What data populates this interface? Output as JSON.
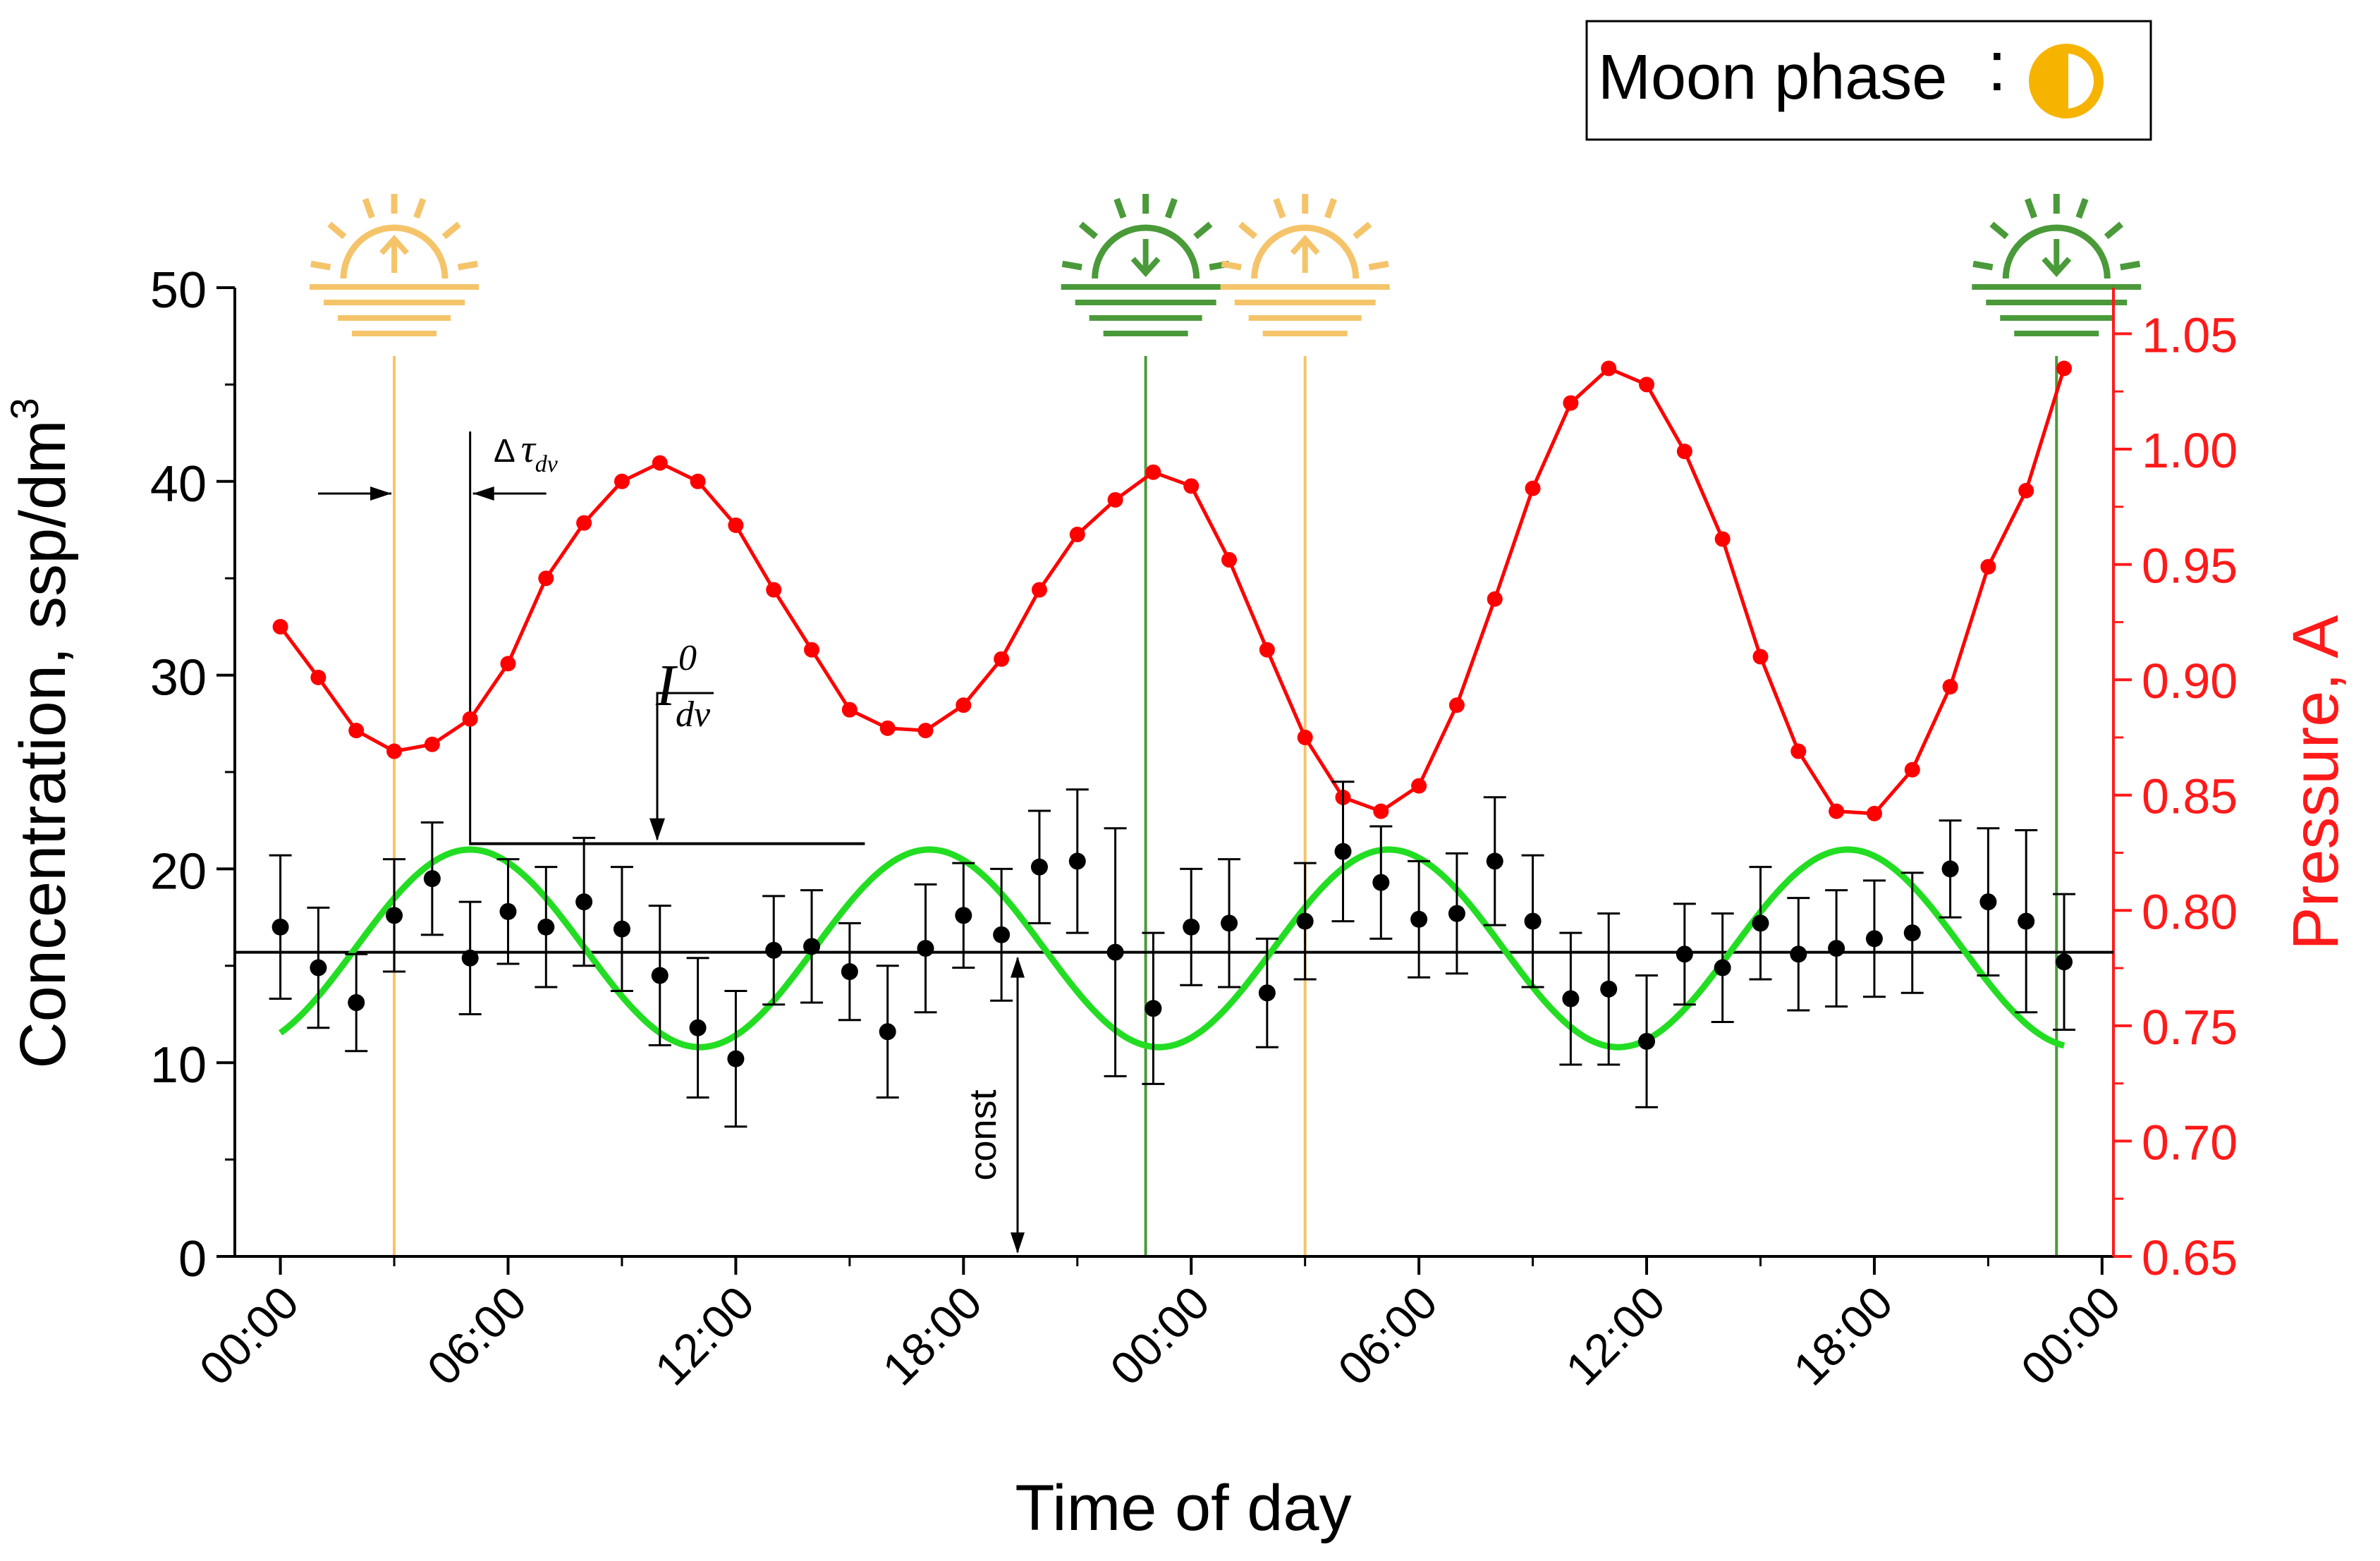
{
  "chart_data": {
    "type": "scatter",
    "xlabel": "Time of day",
    "ylabel_left": "Concentration, ssp/dm",
    "ylabel_left_sup": "3",
    "ylabel_right": "Pressure, A",
    "x_tick_labels": [
      "00:00",
      "06:00",
      "12:00",
      "18:00",
      "00:00",
      "06:00",
      "12:00",
      "18:00",
      "00:00"
    ],
    "x_tick_hours": [
      0,
      6,
      12,
      18,
      24,
      30,
      36,
      42,
      48
    ],
    "xlim_hours": [
      -1.2,
      48.3
    ],
    "ylim_left": [
      0,
      50
    ],
    "y_left_ticks": [
      0,
      10,
      20,
      30,
      40,
      50
    ],
    "ylim_right": [
      0.65,
      1.07
    ],
    "y_right_ticks": [
      "0.65",
      "0.70",
      "0.75",
      "0.80",
      "0.85",
      "0.90",
      "0.95",
      "1.00",
      "1.05"
    ],
    "legend_label": "Moon phase",
    "legend_colon": ":",
    "annotations": {
      "delta_tau": "Δ",
      "delta_tau_sym": "τ",
      "delta_tau_sub": "dv",
      "i_sym": "I",
      "i_sup": "0",
      "i_sub": "dv",
      "const": "const"
    },
    "series": [
      {
        "name": "Concentration",
        "color": "#000000",
        "hours": [
          0,
          1,
          2,
          3,
          4,
          5,
          6,
          7,
          8,
          9,
          10,
          11,
          12,
          13,
          14,
          15,
          16,
          17,
          18,
          19,
          20,
          21,
          22,
          23,
          24,
          25,
          26,
          27,
          28,
          29,
          30,
          31,
          32,
          33,
          34,
          35,
          36,
          37,
          38,
          39,
          40,
          41,
          42,
          43,
          44,
          45,
          46,
          47
        ],
        "values": [
          17.0,
          14.9,
          13.1,
          17.6,
          19.5,
          15.4,
          17.8,
          17.0,
          18.3,
          16.9,
          14.5,
          11.8,
          10.2,
          15.8,
          16.0,
          14.7,
          11.6,
          15.9,
          17.6,
          16.6,
          20.1,
          20.4,
          15.7,
          12.8,
          17.0,
          17.2,
          13.6,
          17.3,
          20.9,
          19.3,
          17.4,
          17.7,
          20.4,
          17.3,
          13.3,
          13.8,
          11.1,
          15.6,
          14.9,
          17.2,
          15.6,
          15.9,
          16.4,
          16.7,
          20.0,
          18.3,
          17.3,
          15.2
        ],
        "errors": [
          3.7,
          3.1,
          2.5,
          2.9,
          2.9,
          2.9,
          2.7,
          3.1,
          3.3,
          3.2,
          3.6,
          3.6,
          3.5,
          2.8,
          2.9,
          2.5,
          3.4,
          3.3,
          2.7,
          3.4,
          2.9,
          3.7,
          6.4,
          3.9,
          3.0,
          3.3,
          2.8,
          3.0,
          3.6,
          2.9,
          3.0,
          3.1,
          3.3,
          3.4,
          3.4,
          3.9,
          3.4,
          2.6,
          2.8,
          2.9,
          2.9,
          3.0,
          3.0,
          3.1,
          2.5,
          3.8,
          4.7,
          3.5
        ]
      },
      {
        "name": "Pressure",
        "color": "#ff0000",
        "hours": [
          0,
          1,
          2,
          3,
          4,
          5,
          6,
          7,
          8,
          9,
          10,
          11,
          12,
          13,
          14,
          15,
          16,
          17,
          18,
          19,
          20,
          21,
          22,
          23,
          24,
          25,
          26,
          27,
          28,
          29,
          30,
          31,
          32,
          33,
          34,
          35,
          36,
          37,
          38,
          39,
          40,
          41,
          42,
          43,
          44,
          45,
          46,
          47
        ],
        "values": [
          0.923,
          0.901,
          0.878,
          0.869,
          0.872,
          0.883,
          0.907,
          0.944,
          0.968,
          0.986,
          0.994,
          0.986,
          0.967,
          0.939,
          0.913,
          0.887,
          0.879,
          0.878,
          0.889,
          0.909,
          0.939,
          0.963,
          0.978,
          0.99,
          0.984,
          0.952,
          0.913,
          0.875,
          0.849,
          0.843,
          0.854,
          0.889,
          0.935,
          0.983,
          1.02,
          1.035,
          1.028,
          0.999,
          0.961,
          0.91,
          0.869,
          0.843,
          0.842,
          0.861,
          0.897,
          0.949,
          0.982,
          1.035
        ]
      },
      {
        "name": "Fit",
        "color": "#22dd22",
        "offset": 15.9,
        "amplitude": 5.1,
        "period_hours": 12.1,
        "peak_hour": 5.0,
        "range_hours": [
          0,
          47
        ]
      }
    ],
    "reference_lines": {
      "const_level": 15.7,
      "i_level": 21.3,
      "delta_start_hour": 3,
      "delta_end_hour": 5
    },
    "event_lines": [
      {
        "hour": 3.0,
        "kind": "sunrise",
        "color": "#f5c46a"
      },
      {
        "hour": 22.8,
        "kind": "sunset",
        "color": "#4a9a3a"
      },
      {
        "hour": 27.0,
        "kind": "sunrise",
        "color": "#f5c46a"
      },
      {
        "hour": 46.8,
        "kind": "sunset",
        "color": "#4a9a3a"
      }
    ]
  }
}
